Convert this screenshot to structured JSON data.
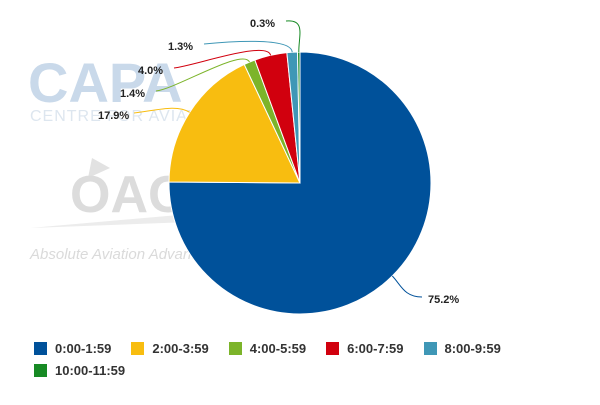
{
  "watermark": {
    "capa_logo": "CAPA",
    "capa_sub": "CENTRE FOR AVIATION",
    "oag_logo": "OAG",
    "oag_tagline": "Absolute Aviation Advantage"
  },
  "chart_data": {
    "type": "pie",
    "title": "",
    "categories": [
      "0:00-1:59",
      "2:00-3:59",
      "4:00-5:59",
      "6:00-7:59",
      "8:00-9:59",
      "10:00-11:59"
    ],
    "values": [
      75.2,
      17.9,
      1.4,
      4.0,
      1.3,
      0.3
    ],
    "value_labels": [
      "75.2%",
      "17.9%",
      "1.4%",
      "4.0%",
      "1.3%",
      "0.3%"
    ],
    "colors": [
      "#00519a",
      "#f8bd10",
      "#7cb42a",
      "#d1000e",
      "#3f97b6",
      "#178a24"
    ],
    "start_angle_deg": 0,
    "direction": "clockwise",
    "legend_position": "bottom"
  }
}
